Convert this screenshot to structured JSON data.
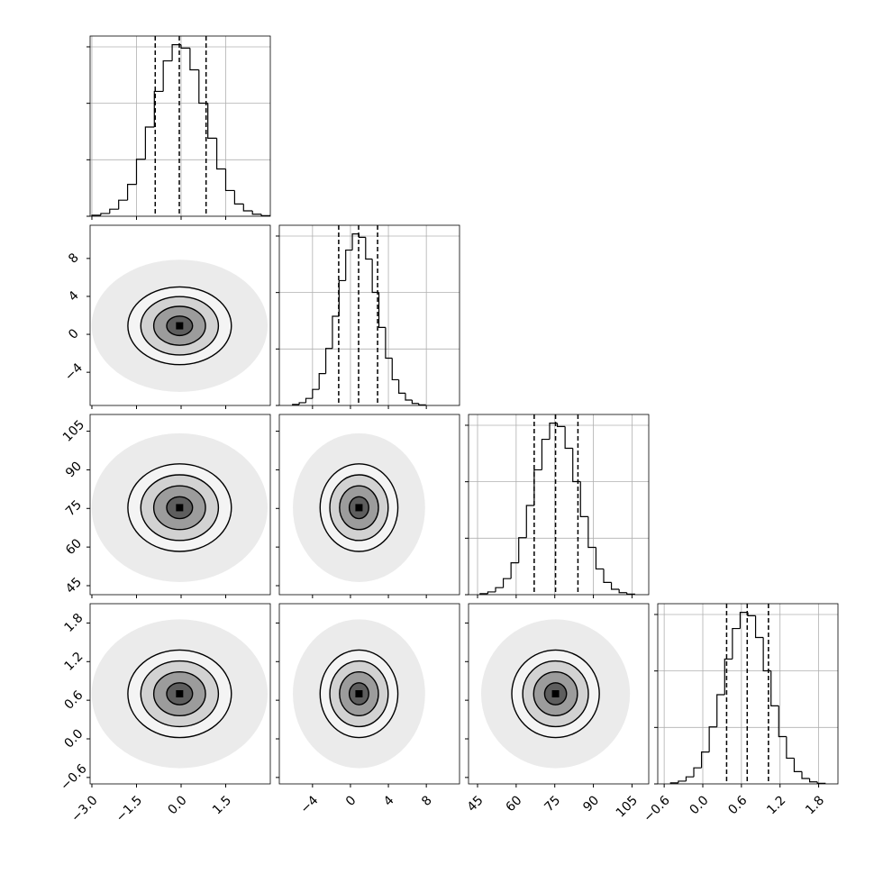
{
  "chart_data": {
    "type": "corner",
    "grid": true,
    "hist_ylim": [
      0,
      1436
    ],
    "hist_yticks": [
      0,
      450,
      900,
      1350
    ],
    "params": [
      {
        "mean": -0.05,
        "sigma": 0.87,
        "quantiles": [
          -0.87,
          -0.06,
          0.84
        ],
        "lim": [
          -3.06,
          3.0
        ],
        "ticks": [
          {
            "value": -3.0,
            "label": "−3.0"
          },
          {
            "value": -1.5,
            "label": "−1.5"
          },
          {
            "value": 0.0,
            "label": "0.0"
          },
          1.5
        ],
        "bins": [
          -3.0,
          -2.7,
          -2.4,
          -2.1,
          -1.8,
          -1.5,
          -1.2,
          -0.9,
          -0.6,
          -0.3,
          0.0,
          0.3,
          0.6,
          0.9,
          1.2,
          1.5,
          1.8,
          2.1,
          2.4,
          2.7,
          3.0
        ],
        "counts": [
          8,
          22,
          56,
          128,
          254,
          454,
          711,
          995,
          1238,
          1367,
          1340,
          1167,
          901,
          622,
          377,
          205,
          98,
          43,
          16,
          5
        ]
      },
      {
        "mean": 0.9,
        "sigma": 2.05,
        "quantiles": [
          -1.24,
          0.86,
          2.86
        ],
        "lim": [
          -7.5,
          11.5
        ],
        "ticks": [
          {
            "value": -4,
            "label": "−4"
          },
          0,
          4,
          8
        ],
        "bins": [
          -6.1,
          -5.4,
          -4.7,
          -4.0,
          -3.3,
          -2.6,
          -1.9,
          -1.2,
          -0.5,
          0.2,
          0.9,
          1.6,
          2.3,
          3.0,
          3.7,
          4.4,
          5.1,
          5.8,
          6.5,
          7.2,
          7.9
        ],
        "counts": [
          8,
          22,
          56,
          128,
          254,
          454,
          711,
          995,
          1238,
          1367,
          1340,
          1167,
          901,
          622,
          377,
          205,
          98,
          43,
          16,
          5
        ]
      },
      {
        "mean": 75.3,
        "sigma": 8.5,
        "quantiles": [
          67.0,
          75.3,
          84.0
        ],
        "lim": [
          41.5,
          111.5
        ],
        "ticks": [
          45,
          60,
          75,
          90,
          105
        ],
        "bins": [
          46,
          49,
          52,
          55,
          58,
          61,
          64,
          67,
          70,
          73,
          76,
          79,
          82,
          85,
          88,
          91,
          94,
          97,
          100,
          103,
          106
        ],
        "counts": [
          8,
          22,
          56,
          128,
          254,
          454,
          711,
          995,
          1238,
          1367,
          1340,
          1167,
          901,
          622,
          377,
          205,
          98,
          43,
          16,
          5
        ]
      },
      {
        "mean": 0.7,
        "sigma": 0.34,
        "quantiles": [
          0.37,
          0.69,
          1.02
        ],
        "lim": [
          -0.7,
          2.1
        ],
        "ticks": [
          {
            "value": -0.6,
            "label": "−0.6"
          },
          {
            "value": 0.0,
            "label": "0.0"
          },
          0.6,
          1.2,
          1.8
        ],
        "bins": [
          -0.5,
          -0.38,
          -0.26,
          -0.14,
          -0.02,
          0.1,
          0.22,
          0.34,
          0.46,
          0.58,
          0.7,
          0.82,
          0.94,
          1.06,
          1.18,
          1.3,
          1.42,
          1.54,
          1.66,
          1.78,
          1.9
        ],
        "counts": [
          8,
          22,
          56,
          128,
          254,
          454,
          711,
          995,
          1238,
          1367,
          1340,
          1167,
          901,
          622,
          377,
          205,
          98,
          43,
          16,
          5
        ]
      }
    ]
  }
}
